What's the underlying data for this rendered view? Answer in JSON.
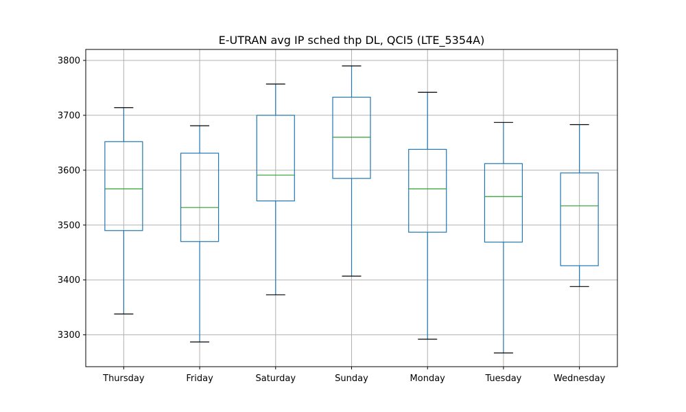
{
  "chart_data": {
    "type": "box",
    "title": "E-UTRAN avg IP sched thp DL, QCI5 (LTE_5354A)",
    "xlabel": "",
    "ylabel": "",
    "ylim": [
      3242,
      3820
    ],
    "yticks": [
      3300,
      3400,
      3500,
      3600,
      3700,
      3800
    ],
    "grid": true,
    "categories": [
      "Thursday",
      "Friday",
      "Saturday",
      "Sunday",
      "Monday",
      "Tuesday",
      "Wednesday"
    ],
    "boxes": [
      {
        "category": "Thursday",
        "whislo": 3338,
        "q1": 3490,
        "med": 3566,
        "q3": 3652,
        "whishi": 3714
      },
      {
        "category": "Friday",
        "whislo": 3287,
        "q1": 3470,
        "med": 3532,
        "q3": 3631,
        "whishi": 3681
      },
      {
        "category": "Saturday",
        "whislo": 3373,
        "q1": 3544,
        "med": 3591,
        "q3": 3700,
        "whishi": 3757
      },
      {
        "category": "Sunday",
        "whislo": 3407,
        "q1": 3585,
        "med": 3660,
        "q3": 3733,
        "whishi": 3790
      },
      {
        "category": "Monday",
        "whislo": 3292,
        "q1": 3487,
        "med": 3566,
        "q3": 3638,
        "whishi": 3742
      },
      {
        "category": "Tuesday",
        "whislo": 3267,
        "q1": 3469,
        "med": 3552,
        "q3": 3612,
        "whishi": 3687
      },
      {
        "category": "Wednesday",
        "whislo": 3388,
        "q1": 3426,
        "med": 3535,
        "q3": 3595,
        "whishi": 3683
      }
    ],
    "colors": {
      "box": "#1f77b4",
      "median": "#2ca02c",
      "cap": "#000000",
      "grid": "#b0b0b0"
    }
  }
}
